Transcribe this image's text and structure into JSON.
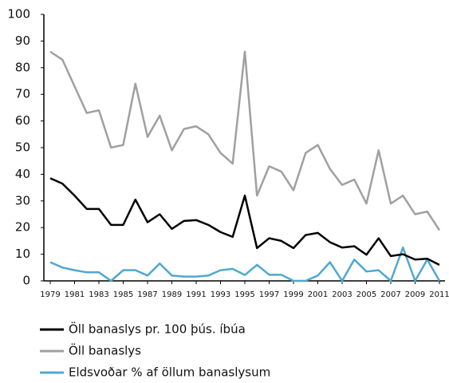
{
  "chart_data": {
    "type": "line",
    "x": [
      1979,
      1980,
      1981,
      1982,
      1983,
      1984,
      1985,
      1986,
      1987,
      1988,
      1989,
      1990,
      1991,
      1992,
      1993,
      1994,
      1995,
      1996,
      1997,
      1998,
      1999,
      2000,
      2001,
      2002,
      2003,
      2004,
      2005,
      2006,
      2007,
      2008,
      2009,
      2010,
      2011
    ],
    "xlim": [
      1979,
      2011
    ],
    "xticks": [
      1979,
      1981,
      1983,
      1985,
      1987,
      1989,
      1991,
      1993,
      1995,
      1997,
      1999,
      2001,
      2003,
      2005,
      2007,
      2009,
      2011
    ],
    "ylim": [
      0,
      100
    ],
    "yticks": [
      0,
      10,
      20,
      30,
      40,
      50,
      60,
      70,
      80,
      90,
      100
    ],
    "grid": false,
    "legend": "bottom",
    "series": [
      {
        "name": "Öll banaslys pr. 100 þús. íbúa",
        "color": "#000000",
        "values": [
          38.5,
          36.5,
          32,
          27,
          27,
          21,
          21,
          30.5,
          22,
          25,
          19.5,
          22.5,
          22.8,
          21,
          18.3,
          16.5,
          32,
          12.3,
          16,
          15,
          12.3,
          17.2,
          18,
          14.5,
          12.5,
          13,
          9.8,
          16,
          9.3,
          10,
          8,
          8.3,
          6
        ]
      },
      {
        "name": "Öll banaslys",
        "color": "#a0a0a0",
        "values": [
          86,
          83,
          73,
          63,
          64,
          50,
          51,
          74,
          54,
          62,
          49,
          57,
          58,
          55,
          48,
          44,
          86,
          32,
          43,
          41,
          34,
          48,
          51,
          42,
          36,
          38,
          29,
          49,
          29,
          32,
          25,
          26,
          19
        ]
      },
      {
        "name": "Eldsvoðar % af öllum banaslysum",
        "color": "#4fa8cf",
        "values": [
          7,
          5,
          4,
          3.2,
          3.2,
          0,
          4,
          4,
          2,
          6.5,
          2,
          1.6,
          1.6,
          2,
          4,
          4.5,
          2.2,
          6,
          2.3,
          2.3,
          0,
          0,
          2,
          7,
          0,
          8,
          3.5,
          4,
          0,
          12.5,
          0,
          8,
          0
        ]
      }
    ]
  }
}
